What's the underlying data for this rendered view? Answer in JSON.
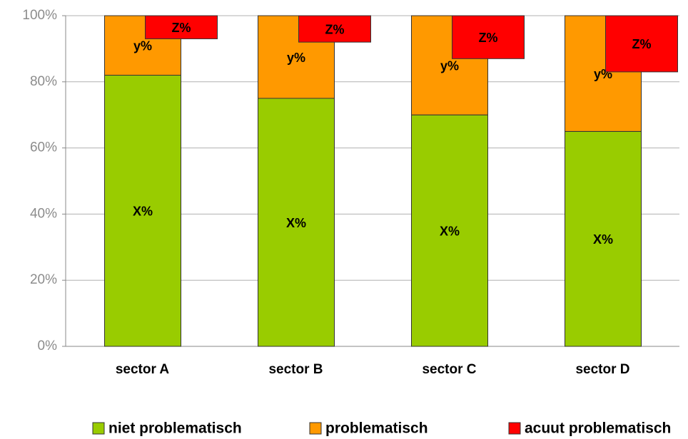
{
  "chart_data": {
    "type": "bar",
    "categories": [
      "sector A",
      "sector B",
      "sector C",
      "sector D"
    ],
    "series": [
      {
        "name": "niet problematisch",
        "color": "#99cc00",
        "values": [
          82,
          75,
          70,
          65
        ],
        "value_labels": [
          "X%",
          "X%",
          "X%",
          "X%"
        ]
      },
      {
        "name": "problematisch",
        "color": "#ff9900",
        "values": [
          18,
          25,
          30,
          35
        ],
        "value_labels": [
          "y%",
          "y%",
          "y%",
          "y%"
        ]
      },
      {
        "name": "acuut problematisch",
        "color": "#ff0000",
        "values": [
          7,
          8,
          13,
          17
        ],
        "value_labels": [
          "Z%",
          "Z%",
          "Z%",
          "Z%"
        ]
      }
    ],
    "ylim": [
      0,
      100
    ],
    "yticks": [
      {
        "value": 0,
        "label": "0%"
      },
      {
        "value": 20,
        "label": "20%"
      },
      {
        "value": 40,
        "label": "40%"
      },
      {
        "value": 60,
        "label": "60%"
      },
      {
        "value": 80,
        "label": "80%"
      },
      {
        "value": 100,
        "label": "100%"
      }
    ],
    "grid": true,
    "legend": "bottom"
  }
}
